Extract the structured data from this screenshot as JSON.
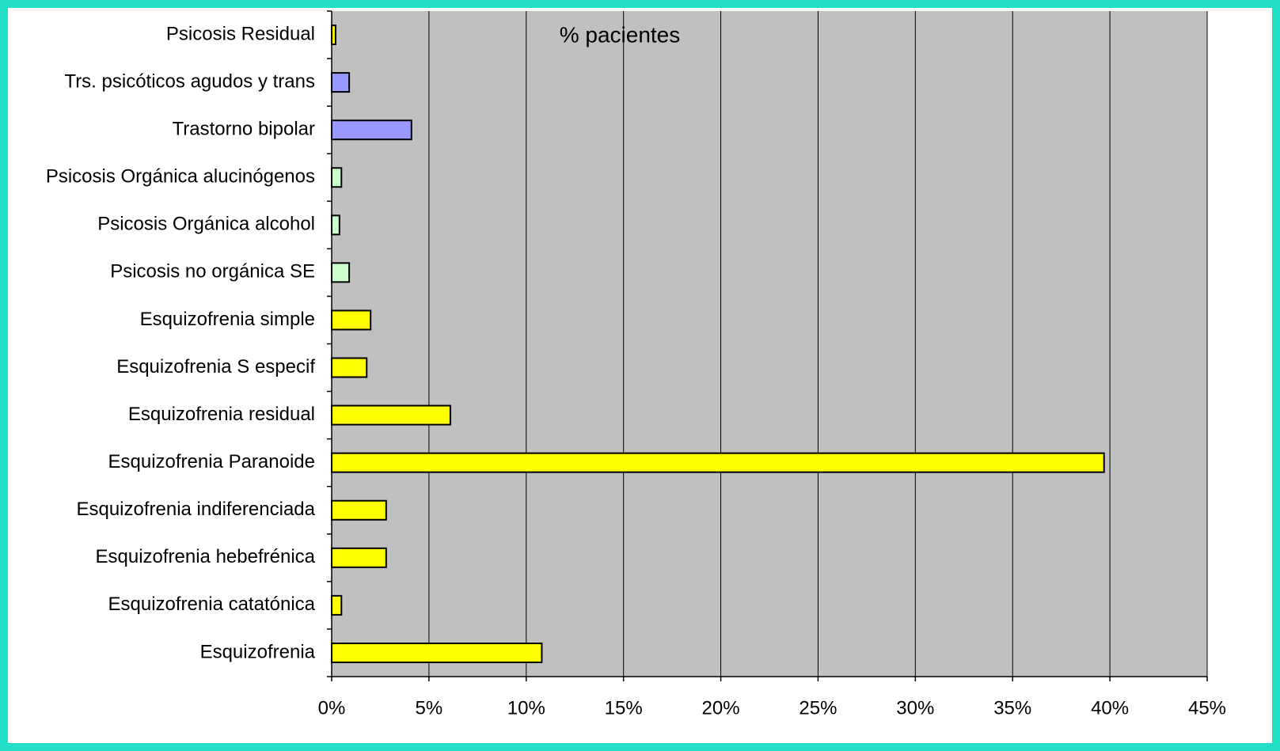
{
  "chart_data": {
    "type": "hbar",
    "title": "% pacientes",
    "categories": [
      "Psicosis Residual",
      "Trs. psicóticos agudos y trans",
      "Trastorno bipolar",
      "Psicosis Orgánica alucinógenos",
      "Psicosis Orgánica alcohol",
      "Psicosis no orgánica SE",
      "Esquizofrenia simple",
      "Esquizofrenia S especif",
      "Esquizofrenia residual",
      "Esquizofrenia Paranoide",
      "Esquizofrenia indiferenciada",
      "Esquizofrenia hebefrénica",
      "Esquizofrenia catatónica",
      "Esquizofrenia"
    ],
    "values": [
      0.2,
      0.9,
      4.1,
      0.5,
      0.4,
      0.9,
      2.0,
      1.8,
      6.1,
      39.7,
      2.8,
      2.8,
      0.5,
      10.8
    ],
    "colors": [
      "#ffff00",
      "#9999ff",
      "#9999ff",
      "#ccffcc",
      "#ccffcc",
      "#ccffcc",
      "#ffff00",
      "#ffff00",
      "#ffff00",
      "#ffff00",
      "#ffff00",
      "#ffff00",
      "#ffff00",
      "#ffff00"
    ],
    "xlim": [
      0,
      45
    ],
    "xticks": [
      {
        "value": 0,
        "label": "0%"
      },
      {
        "value": 5,
        "label": "5%"
      },
      {
        "value": 10,
        "label": "10%"
      },
      {
        "value": 15,
        "label": "15%"
      },
      {
        "value": 20,
        "label": "20%"
      },
      {
        "value": 25,
        "label": "25%"
      },
      {
        "value": 30,
        "label": "30%"
      },
      {
        "value": 35,
        "label": "35%"
      },
      {
        "value": 40,
        "label": "40%"
      },
      {
        "value": 45,
        "label": "45%"
      }
    ],
    "grid": true
  }
}
